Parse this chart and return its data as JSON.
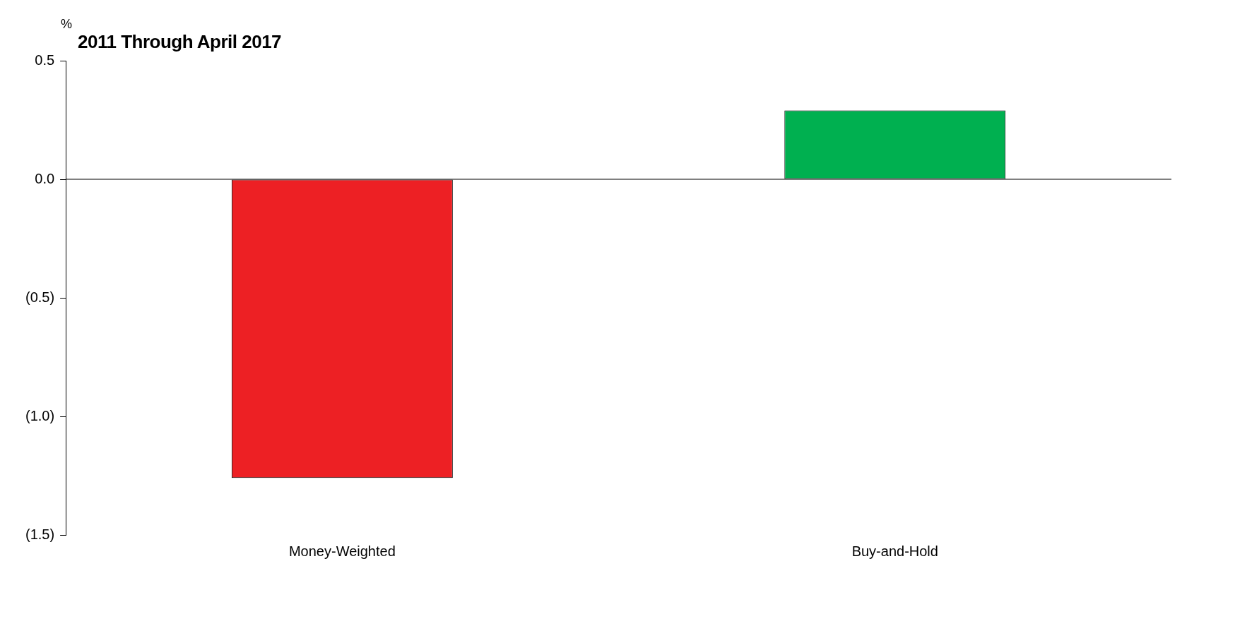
{
  "chart_data": {
    "type": "bar",
    "title": "2011 Through April 2017",
    "ylabel": "%",
    "categories": [
      "Money-Weighted",
      "Buy-and-Hold"
    ],
    "values": [
      -1.26,
      0.29
    ],
    "colors": [
      "#ed2024",
      "#00b050"
    ],
    "ylim": [
      -1.5,
      0.5
    ],
    "yticks": [
      {
        "value": 0.5,
        "label": "0.5"
      },
      {
        "value": 0,
        "label": "0.0"
      },
      {
        "value": -0.5,
        "label": "(0.5)"
      },
      {
        "value": -1,
        "label": "(1.0)"
      },
      {
        "value": -1.5,
        "label": "(1.5)"
      }
    ],
    "ref_lines": [
      {
        "axis": "y",
        "value": 0,
        "color": "#000000"
      }
    ],
    "grid": false,
    "legend": false
  }
}
